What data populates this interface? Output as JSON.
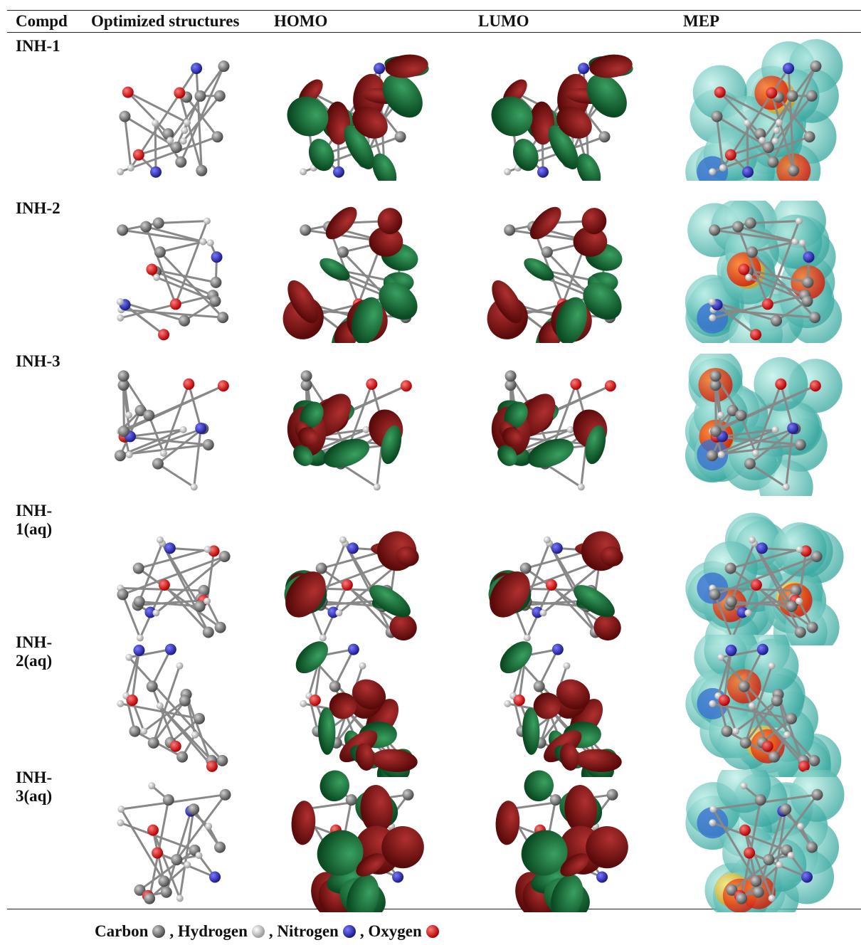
{
  "table": {
    "headers": [
      "Compd",
      "Optimized structures",
      "HOMO",
      "LUMO",
      "MEP"
    ],
    "rows": [
      "INH-1",
      "INH-2",
      "INH-3",
      "INH-1(aq)",
      "INH-2(aq)",
      "INH-3(aq)"
    ]
  },
  "legend": {
    "items": [
      "Carbon",
      ", Hydrogen",
      ", Nitrogen",
      ", Oxygen"
    ]
  }
}
